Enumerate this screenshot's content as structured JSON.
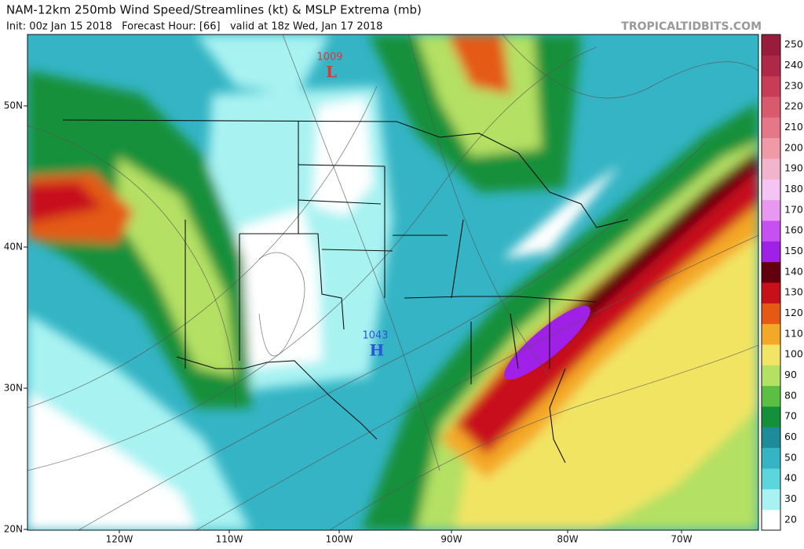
{
  "header": {
    "title": "NAM-12km 250mb Wind Speed/Streamlines (kt) & MSLP Extrema (mb)",
    "subtitle": "Init: 00z Jan 15 2018   Forecast Hour: [66]   valid at 18z Wed, Jan 17 2018",
    "source": "TROPICALTIDBITS.COM"
  },
  "map": {
    "lat_labels": [
      "50N",
      "40N",
      "30N",
      "20N"
    ],
    "lon_labels": [
      "120W",
      "110W",
      "100W",
      "90W",
      "80W",
      "70W"
    ],
    "extrema": [
      {
        "label": "1009",
        "symbol": "L",
        "color": "#d8383a"
      },
      {
        "label": "1043",
        "symbol": "H",
        "color": "#2a56d6"
      }
    ]
  },
  "colorbar": {
    "ticks": [
      20,
      30,
      40,
      50,
      60,
      70,
      80,
      90,
      100,
      110,
      120,
      130,
      140,
      150,
      160,
      170,
      180,
      190,
      200,
      210,
      220,
      230,
      240,
      250
    ],
    "colors": [
      "#ffffff",
      "#a8f2f2",
      "#5cd6dc",
      "#34b4c4",
      "#1e8c98",
      "#12903a",
      "#5cbf44",
      "#b4e064",
      "#f2e464",
      "#f4a828",
      "#e45a14",
      "#c8101a",
      "#62000e",
      "#a020e8",
      "#c650f2",
      "#e898f0",
      "#f6c4f4",
      "#f2b4cc",
      "#f09aa8",
      "#e47888",
      "#d85a6c",
      "#c83c56",
      "#b02848",
      "#9a1c3c"
    ]
  }
}
